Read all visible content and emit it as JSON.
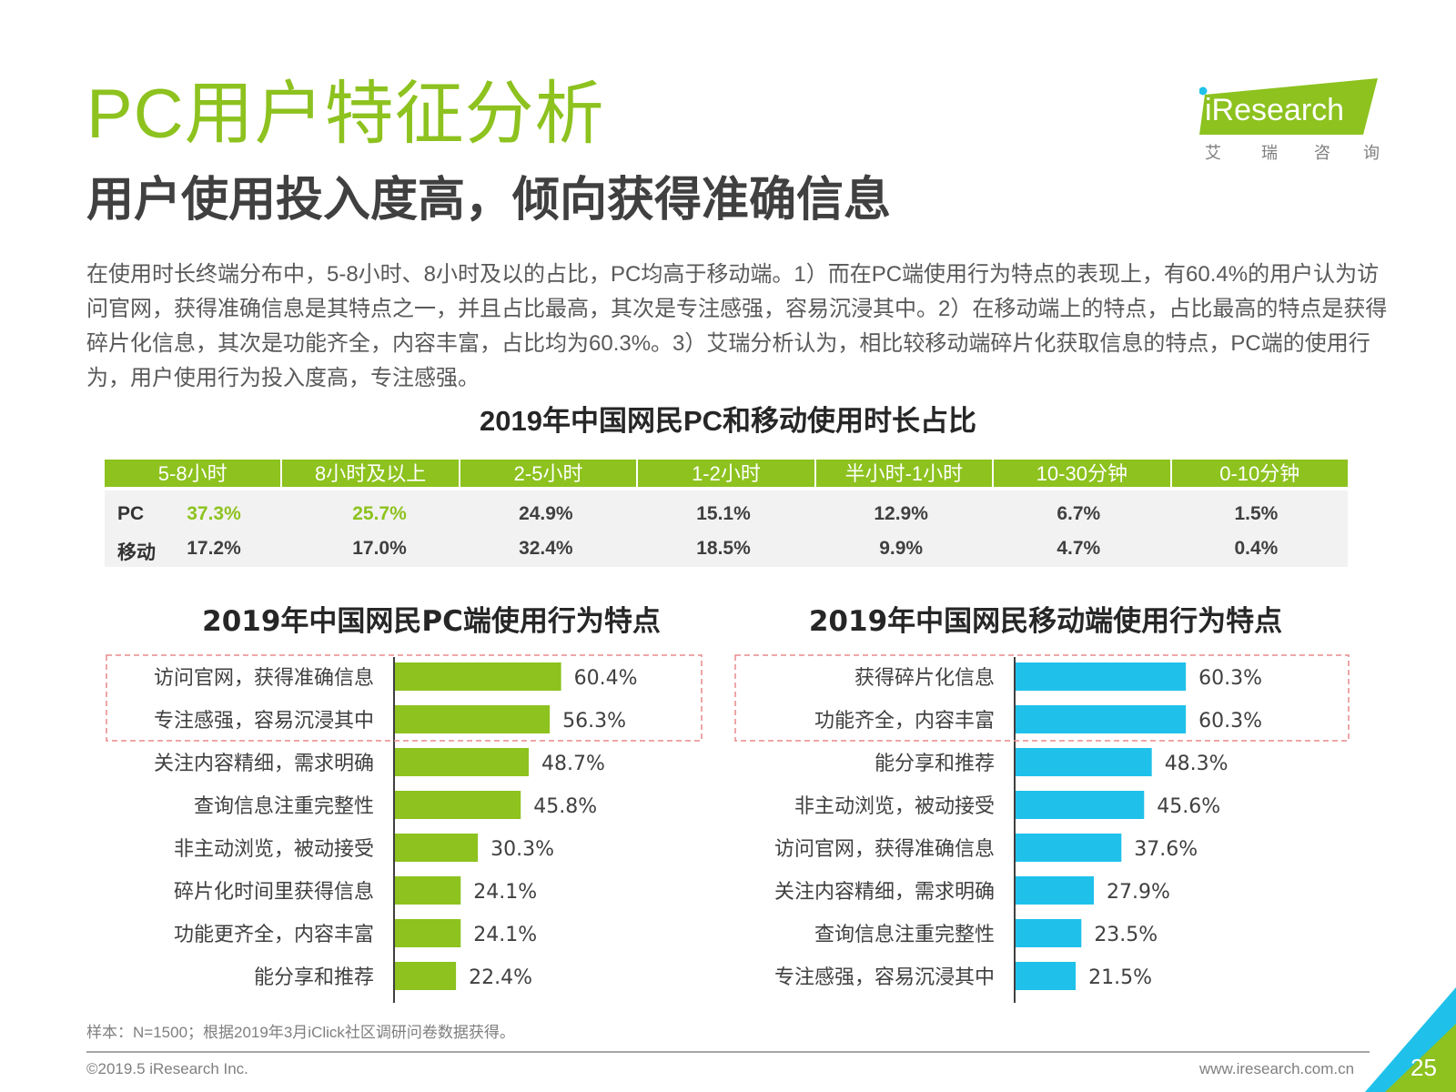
{
  "page": {
    "title": "PC用户特征分析",
    "subtitle": "用户使用投入度高，倾向获得准确信息",
    "intro": "在使用时长终端分布中，5-8小时、8小时及以的占比，PC均高于移动端。1）而在PC端使用行为特点的表现上，有60.4%的用户认为访问官网，获得准确信息是其特点之一，并且占比最高，其次是专注感强，容易沉浸其中。2）在移动端上的特点，占比最高的特点是获得碎片化信息，其次是功能齐全，内容丰富，占比均为60.3%。3）艾瑞分析认为，相比较移动端碎片化获取信息的特点，PC端的使用行为，用户使用行为投入度高，专注感强。",
    "note": "样本：N=1500；根据2019年3月iClick社区调研问卷数据获得。",
    "copyright": "©2019.5 iResearch Inc.",
    "website": "www.iresearch.com.cn",
    "page_number": "25"
  },
  "logo": {
    "wordmark": "iResearch",
    "tagline": [
      "艾",
      "瑞",
      "咨",
      "询"
    ],
    "color": "#8dc21f"
  },
  "colors": {
    "green": "#8dc21f",
    "blue": "#1fc1ea",
    "highlight_box": "#e8898c"
  },
  "chart_data": [
    {
      "type": "table",
      "title": "2019年中国网民PC和移动使用时长占比",
      "columns": [
        "5-8小时",
        "8小时及以上",
        "2-5小时",
        "1-2小时",
        "半小时-1小时",
        "10-30分钟",
        "0-10分钟"
      ],
      "rows": [
        {
          "label": "PC",
          "values": [
            "37.3%",
            "25.7%",
            "24.9%",
            "15.1%",
            "12.9%",
            "6.7%",
            "1.5%"
          ],
          "highlighted": [
            0,
            1
          ]
        },
        {
          "label": "移动",
          "values": [
            "17.2%",
            "17.0%",
            "32.4%",
            "18.5%",
            "9.9%",
            "4.7%",
            "0.4%"
          ]
        }
      ]
    },
    {
      "type": "bar",
      "orientation": "horizontal",
      "title": "2019年中国网民PC端使用行为特点",
      "color": "#8dc21f",
      "categories": [
        "访问官网，获得准确信息",
        "专注感强，容易沉浸其中",
        "关注内容精细，需求明确",
        "查询信息注重完整性",
        "非主动浏览，被动接受",
        "碎片化时间里获得信息",
        "功能更齐全，内容丰富",
        "能分享和推荐"
      ],
      "values": [
        60.4,
        56.3,
        48.7,
        45.8,
        30.3,
        24.1,
        24.1,
        22.4
      ],
      "labels": [
        "60.4%",
        "56.3%",
        "48.7%",
        "45.8%",
        "30.3%",
        "24.1%",
        "24.1%",
        "22.4%"
      ],
      "highlighted_top": 2
    },
    {
      "type": "bar",
      "orientation": "horizontal",
      "title": "2019年中国网民移动端使用行为特点",
      "color": "#1fc1ea",
      "categories": [
        "获得碎片化信息",
        "功能齐全，内容丰富",
        "能分享和推荐",
        "非主动浏览，被动接受",
        "访问官网，获得准确信息",
        "关注内容精细，需求明确",
        "查询信息注重完整性",
        "专注感强，容易沉浸其中"
      ],
      "values": [
        60.3,
        60.3,
        48.3,
        45.6,
        37.6,
        27.9,
        23.5,
        21.5
      ],
      "labels": [
        "60.3%",
        "60.3%",
        "48.3%",
        "45.6%",
        "37.6%",
        "27.9%",
        "23.5%",
        "21.5%"
      ],
      "highlighted_top": 2
    }
  ]
}
